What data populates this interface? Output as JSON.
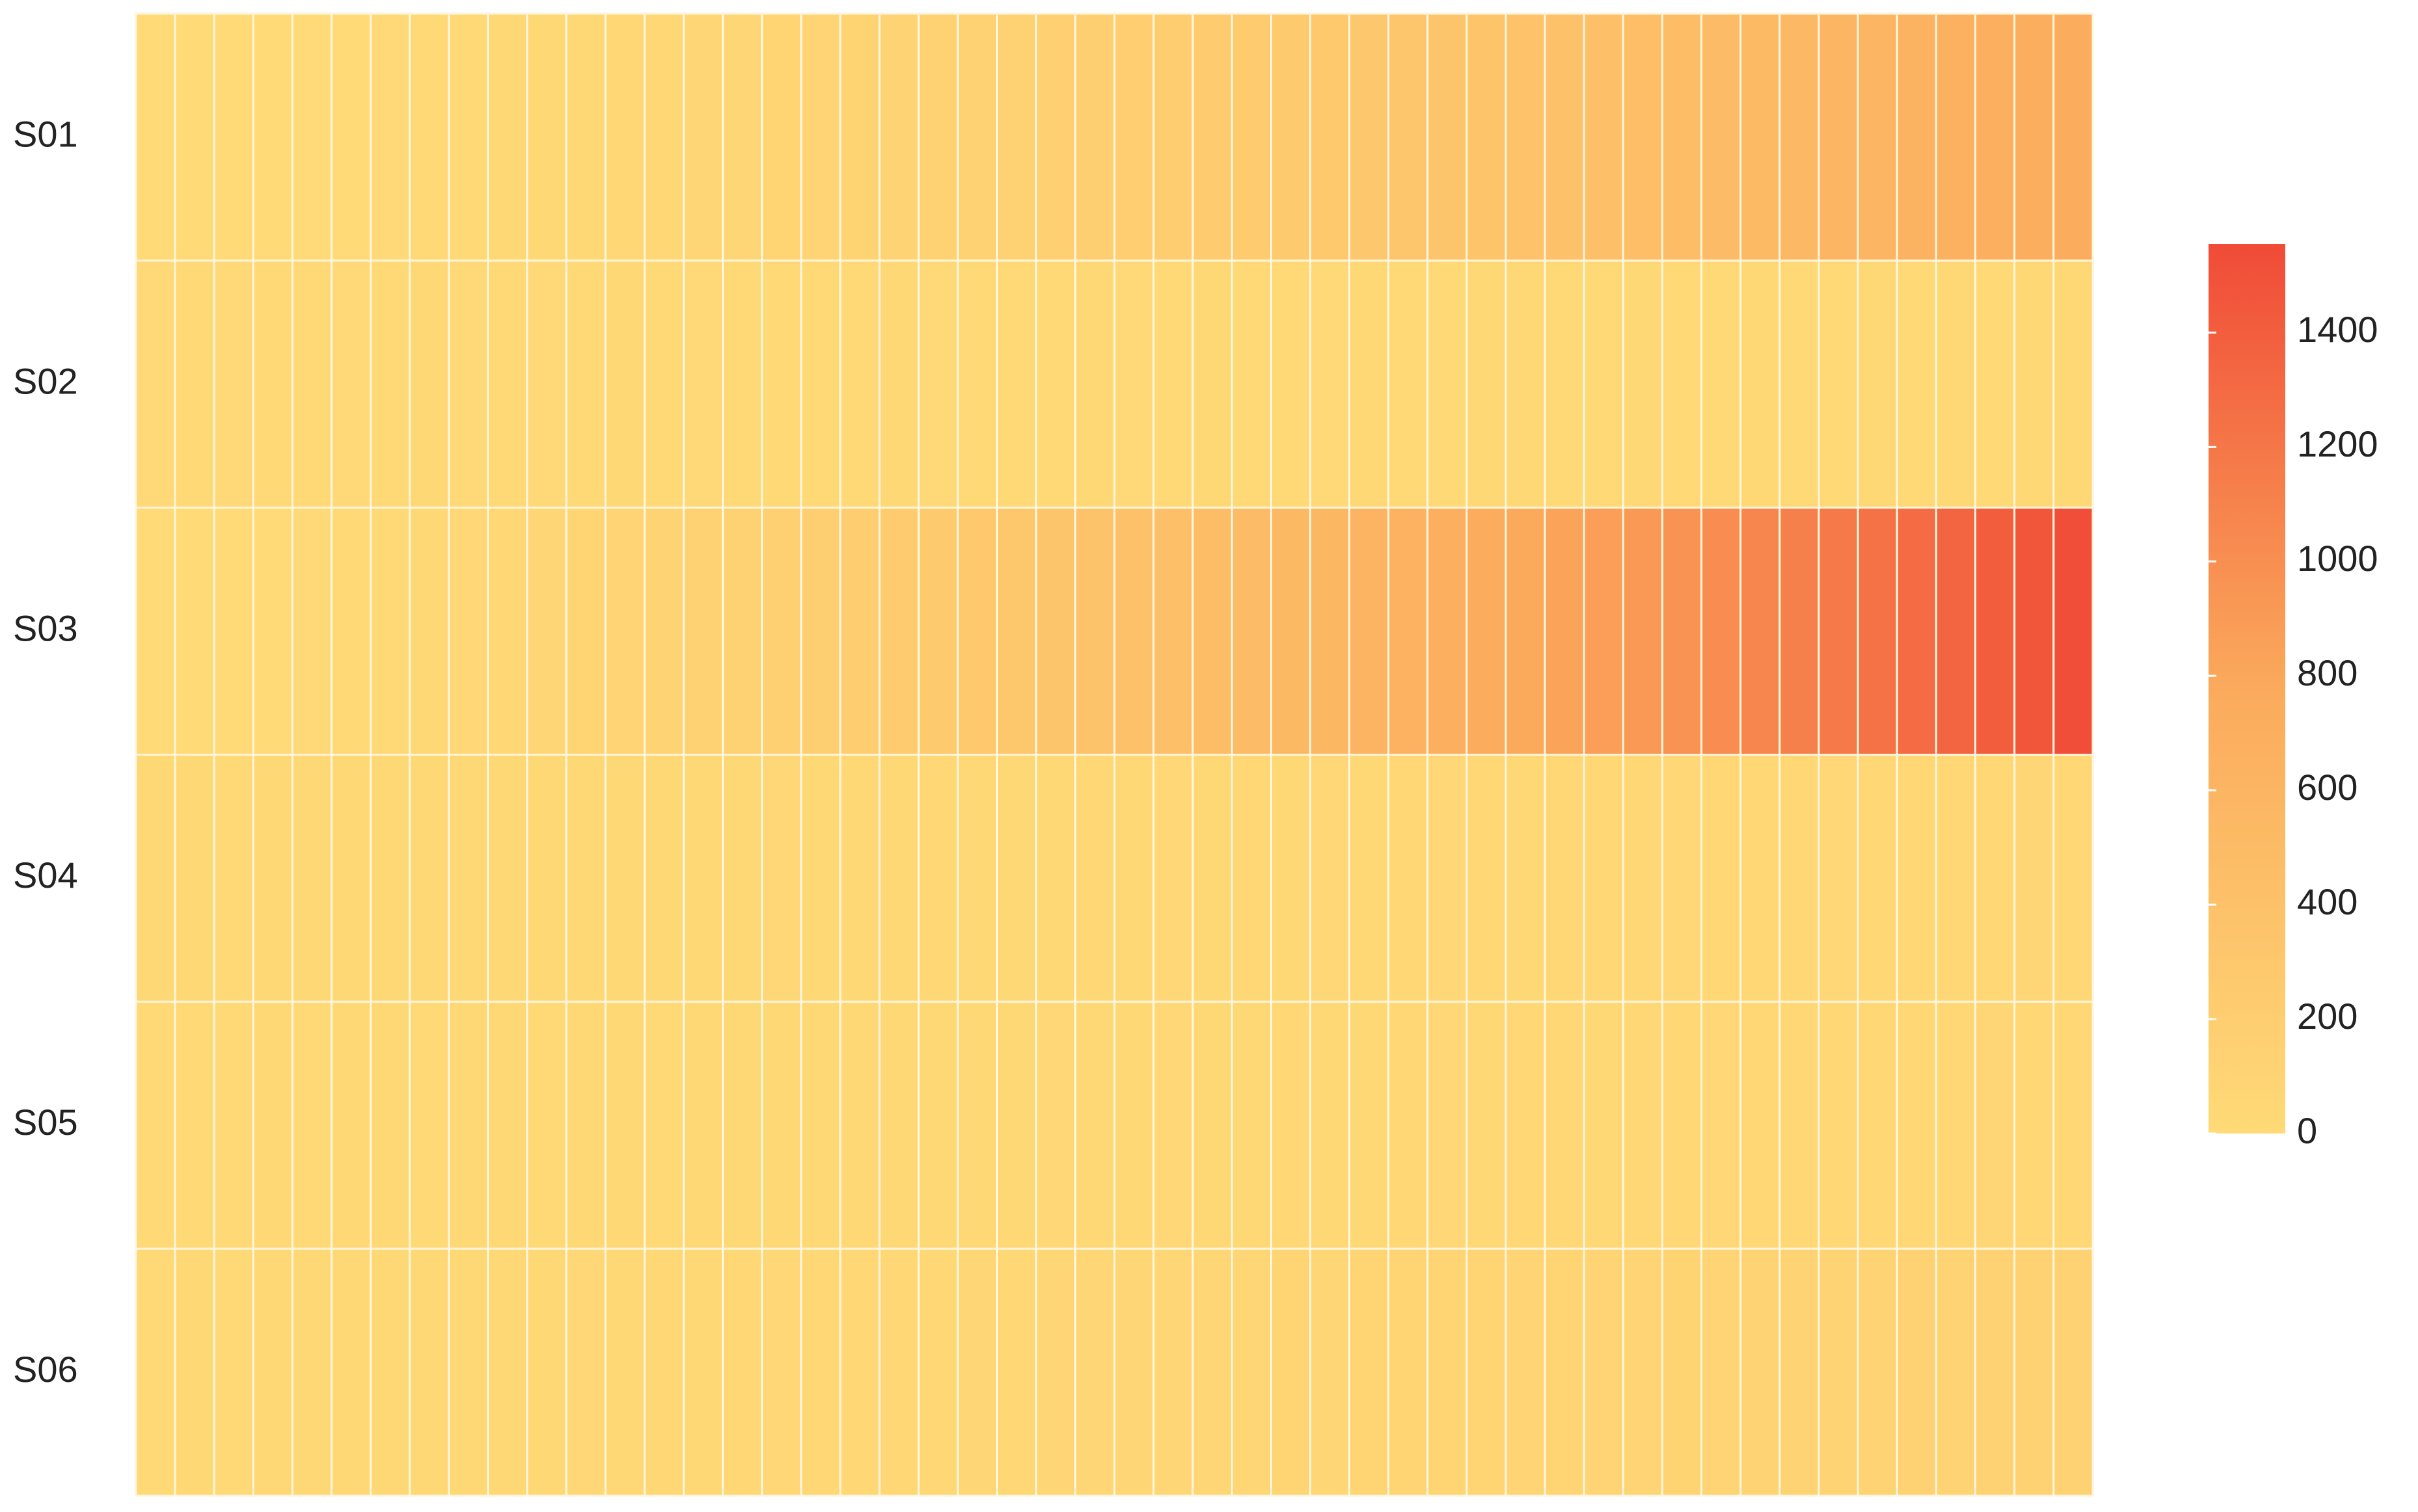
{
  "chart_data": {
    "type": "heatmap",
    "y_categories": [
      "S01",
      "S02",
      "S03",
      "S04",
      "S05",
      "S06"
    ],
    "x_categories": [
      null,
      null,
      null,
      null,
      null,
      null,
      null,
      null,
      null,
      null,
      null,
      null,
      null,
      null,
      null,
      null,
      null,
      null,
      null,
      null,
      null,
      null,
      null,
      null,
      null,
      null,
      null,
      null,
      null,
      null,
      null,
      null,
      null,
      null,
      null,
      null,
      null,
      null,
      null,
      null,
      null,
      null,
      null,
      null,
      null,
      null,
      null,
      null,
      null,
      null
    ],
    "values": [
      [
        0,
        0,
        1,
        3,
        5,
        8,
        11,
        15,
        20,
        25,
        31,
        38,
        45,
        53,
        61,
        70,
        80,
        90,
        101,
        113,
        125,
        138,
        151,
        165,
        180,
        195,
        211,
        228,
        245,
        263,
        281,
        300,
        320,
        340,
        361,
        383,
        405,
        428,
        451,
        475,
        500,
        525,
        551,
        578,
        605,
        633,
        661,
        690,
        720,
        750
      ],
      [
        12,
        18,
        9,
        15,
        22,
        11,
        17,
        25,
        14,
        20,
        13,
        19,
        28,
        16,
        10,
        21,
        24,
        15,
        18,
        27,
        12,
        20,
        16,
        23,
        30,
        14,
        19,
        26,
        17,
        22,
        13,
        28,
        20,
        18,
        25,
        31,
        16,
        21,
        27,
        19,
        24,
        29,
        17,
        23,
        32,
        20,
        26,
        22,
        28,
        35
      ],
      [
        0,
        1,
        3,
        6,
        10,
        16,
        23,
        31,
        41,
        52,
        64,
        77,
        92,
        108,
        125,
        143,
        163,
        184,
        206,
        230,
        255,
        281,
        308,
        337,
        367,
        398,
        431,
        464,
        499,
        536,
        573,
        612,
        652,
        694,
        736,
        780,
        826,
        872,
        920,
        969,
        1019,
        1071,
        1124,
        1178,
        1233,
        1290,
        1348,
        1407,
        1467,
        1529
      ],
      [
        25,
        30,
        22,
        35,
        28,
        33,
        26,
        38,
        31,
        29,
        36,
        27,
        40,
        32,
        35,
        30,
        42,
        34,
        37,
        31,
        44,
        36,
        39,
        33,
        46,
        38,
        41,
        35,
        48,
        40,
        43,
        37,
        50,
        42,
        45,
        39,
        52,
        44,
        47,
        41,
        54,
        46,
        49,
        43,
        56,
        48,
        51,
        45,
        58,
        50
      ],
      [
        18,
        24,
        20,
        27,
        22,
        29,
        25,
        21,
        31,
        26,
        23,
        33,
        28,
        24,
        35,
        30,
        26,
        37,
        32,
        28,
        39,
        34,
        30,
        41,
        36,
        32,
        43,
        38,
        34,
        45,
        40,
        36,
        47,
        42,
        38,
        49,
        44,
        40,
        51,
        46,
        42,
        53,
        48,
        44,
        55,
        50,
        46,
        57,
        52,
        48
      ],
      [
        20,
        26,
        22,
        30,
        25,
        33,
        28,
        36,
        31,
        39,
        34,
        42,
        37,
        45,
        40,
        48,
        43,
        51,
        46,
        55,
        50,
        58,
        53,
        62,
        57,
        66,
        61,
        70,
        65,
        75,
        70,
        80,
        75,
        85,
        80,
        91,
        86,
        97,
        92,
        104,
        99,
        111,
        106,
        118,
        113,
        126,
        121,
        134,
        129,
        142
      ]
    ],
    "colorscale": [
      "#FFDA77",
      "#FBAA5C",
      "#F04B37"
    ],
    "zlim": [
      0,
      1555
    ],
    "zticks": [
      0,
      200,
      400,
      600,
      800,
      1000,
      1200,
      1400
    ]
  }
}
